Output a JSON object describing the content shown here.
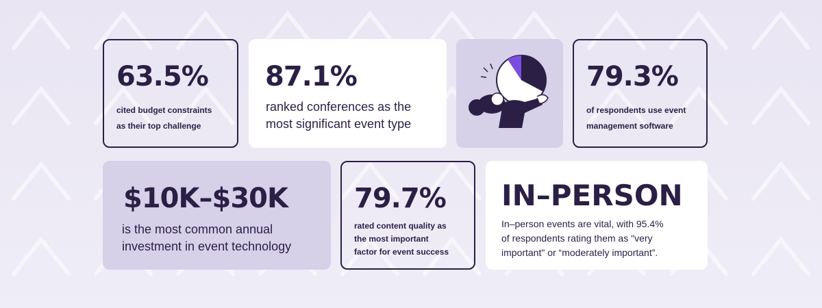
{
  "cards": [
    {
      "stat": "63.5%",
      "lines": [
        "cited budget constraints",
        "as their top challenge"
      ]
    },
    {
      "stat": "87.1%",
      "lines": [
        "ranked conferences as the",
        "most significant event type"
      ]
    },
    {
      "stat": "79.3%",
      "lines": [
        "of respondents use event",
        "management software"
      ]
    },
    {
      "stat": "$10K–$30K",
      "lines": [
        "is the most common annual",
        "investment in event technology"
      ]
    },
    {
      "stat": "79.7%",
      "lines": [
        "rated content quality as",
        "the most important",
        "factor for event success"
      ]
    },
    {
      "stat": "IN–PERSON",
      "lines": [
        "In–person events are vital, with 95.4%",
        "of respondents rating them as \"very",
        "important\" or “moderately important”."
      ]
    }
  ]
}
